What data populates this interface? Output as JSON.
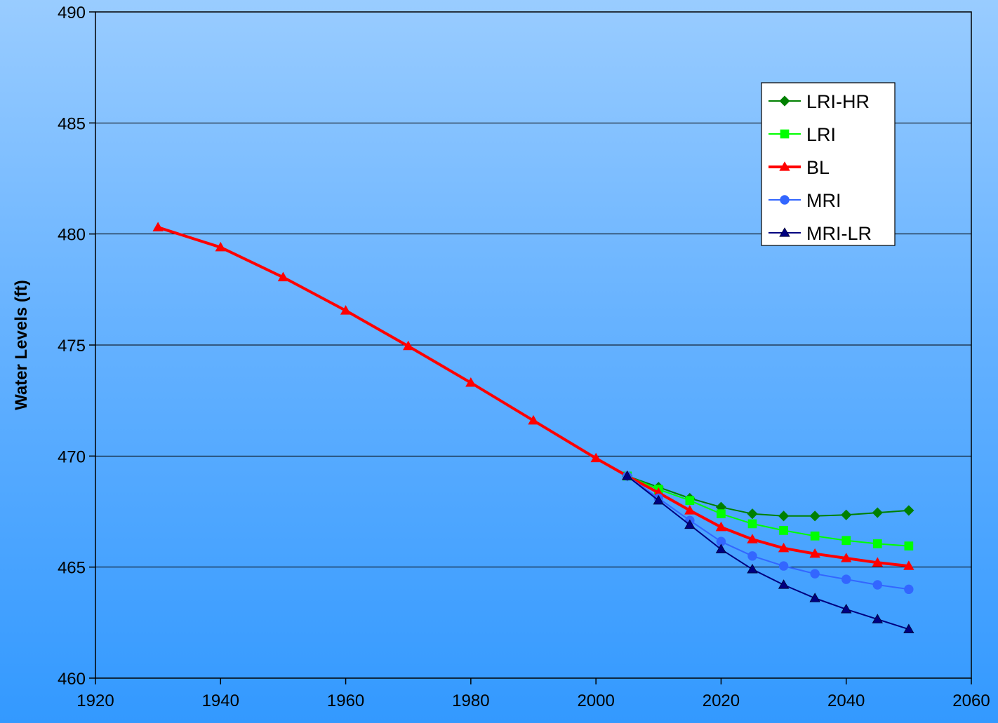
{
  "chart_data": {
    "type": "line",
    "title": "",
    "xlabel": "",
    "ylabel": "Water Levels (ft)",
    "xlim": [
      1920,
      2060
    ],
    "ylim": [
      460,
      490
    ],
    "x_ticks": [
      "1920",
      "1940",
      "1960",
      "1980",
      "2000",
      "2020",
      "2040",
      "2060"
    ],
    "y_ticks": [
      "460",
      "465",
      "470",
      "475",
      "480",
      "485",
      "490"
    ],
    "grid": "horizontal major gridlines",
    "legend_position": "upper-right",
    "series": [
      {
        "name": "LRI-HR",
        "color": "#008000",
        "marker": "diamond",
        "x": [
          2005,
          2010,
          2015,
          2020,
          2025,
          2030,
          2035,
          2040,
          2045,
          2050
        ],
        "y": [
          469.1,
          468.6,
          468.1,
          467.7,
          467.4,
          467.3,
          467.3,
          467.35,
          467.45,
          467.55
        ]
      },
      {
        "name": "LRI",
        "color": "#00ff00",
        "marker": "square",
        "x": [
          2005,
          2010,
          2015,
          2020,
          2025,
          2030,
          2035,
          2040,
          2045,
          2050
        ],
        "y": [
          469.1,
          468.5,
          468.0,
          467.4,
          466.95,
          466.65,
          466.4,
          466.2,
          466.05,
          465.95
        ]
      },
      {
        "name": "BL",
        "color": "#ff0000",
        "marker": "triangle",
        "x": [
          1930,
          1940,
          1950,
          1960,
          1970,
          1980,
          1990,
          2000,
          2005,
          2010,
          2015,
          2020,
          2025,
          2030,
          2035,
          2040,
          2045,
          2050
        ],
        "y": [
          480.3,
          479.4,
          478.05,
          476.55,
          474.95,
          473.3,
          471.6,
          469.9,
          469.1,
          468.35,
          467.55,
          466.8,
          466.25,
          465.85,
          465.6,
          465.4,
          465.2,
          465.05
        ]
      },
      {
        "name": "MRI",
        "color": "#3366ff",
        "marker": "circle",
        "x": [
          2005,
          2010,
          2015,
          2020,
          2025,
          2030,
          2035,
          2040,
          2045,
          2050
        ],
        "y": [
          469.1,
          468.1,
          467.1,
          466.15,
          465.5,
          465.05,
          464.7,
          464.45,
          464.2,
          464.0
        ]
      },
      {
        "name": "MRI-LR",
        "color": "#000080",
        "marker": "triangle",
        "x": [
          2005,
          2010,
          2015,
          2020,
          2025,
          2030,
          2035,
          2040,
          2045,
          2050
        ],
        "y": [
          469.1,
          468.0,
          466.9,
          465.8,
          464.9,
          464.2,
          463.6,
          463.1,
          462.65,
          462.2
        ]
      }
    ]
  }
}
